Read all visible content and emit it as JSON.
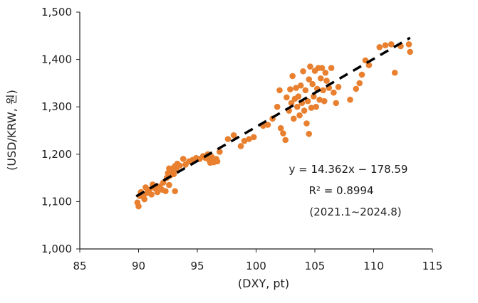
{
  "chart_data": {
    "type": "scatter",
    "xlabel": "(DXY, pt)",
    "ylabel": "(USD/KRW, 원)",
    "xlim": [
      85,
      115
    ],
    "ylim": [
      1000,
      1500
    ],
    "x_ticks": [
      85,
      90,
      95,
      100,
      105,
      110,
      115
    ],
    "y_ticks": [
      1000,
      1100,
      1200,
      1300,
      1400,
      1500
    ],
    "x_tick_labels": [
      "85",
      "90",
      "95",
      "100",
      "105",
      "110",
      "115"
    ],
    "y_tick_labels": [
      "1,000",
      "1,100",
      "1,200",
      "1,300",
      "1,400",
      "1,500"
    ],
    "grid": false,
    "legend": "none",
    "annotations": {
      "equation": "y = 14.362x − 178.59",
      "r_squared": "R² = 0.8994",
      "period": "(2021.1~2024.8)"
    },
    "trendline": {
      "style": "dashed",
      "color": "#000000",
      "slope": 14.362,
      "intercept": -178.59,
      "x_range": [
        89.8,
        113.1
      ]
    },
    "series": [
      {
        "color": "#E8802F",
        "points": [
          [
            89.9,
            1098
          ],
          [
            90.0,
            1090
          ],
          [
            90.1,
            1112
          ],
          [
            90.2,
            1120
          ],
          [
            90.4,
            1110
          ],
          [
            90.5,
            1105
          ],
          [
            90.6,
            1130
          ],
          [
            90.7,
            1118
          ],
          [
            90.9,
            1125
          ],
          [
            91.1,
            1115
          ],
          [
            91.2,
            1136
          ],
          [
            91.4,
            1128
          ],
          [
            91.6,
            1120
          ],
          [
            91.8,
            1132
          ],
          [
            92.0,
            1125
          ],
          [
            92.1,
            1140
          ],
          [
            92.3,
            1122
          ],
          [
            92.4,
            1150
          ],
          [
            92.5,
            1160
          ],
          [
            92.6,
            1135
          ],
          [
            92.7,
            1155
          ],
          [
            92.8,
            1165
          ],
          [
            92.9,
            1170
          ],
          [
            93.0,
            1158
          ],
          [
            93.1,
            1175
          ],
          [
            93.2,
            1168
          ],
          [
            93.3,
            1180
          ],
          [
            93.1,
            1122
          ],
          [
            92.6,
            1170
          ],
          [
            93.5,
            1176
          ],
          [
            93.8,
            1190
          ],
          [
            94.0,
            1178
          ],
          [
            94.3,
            1185
          ],
          [
            94.6,
            1188
          ],
          [
            94.9,
            1192
          ],
          [
            95.2,
            1190
          ],
          [
            95.5,
            1196
          ],
          [
            95.7,
            1192
          ],
          [
            95.9,
            1200
          ],
          [
            96.0,
            1188
          ],
          [
            96.1,
            1182
          ],
          [
            96.2,
            1195
          ],
          [
            96.3,
            1186
          ],
          [
            96.4,
            1183
          ],
          [
            96.6,
            1190
          ],
          [
            96.7,
            1185
          ],
          [
            96.9,
            1205
          ],
          [
            97.6,
            1232
          ],
          [
            98.1,
            1240
          ],
          [
            98.7,
            1217
          ],
          [
            99.0,
            1228
          ],
          [
            99.4,
            1232
          ],
          [
            99.8,
            1236
          ],
          [
            100.6,
            1260
          ],
          [
            101.0,
            1262
          ],
          [
            101.4,
            1275
          ],
          [
            101.8,
            1300
          ],
          [
            102.0,
            1335
          ],
          [
            102.1,
            1255
          ],
          [
            102.3,
            1244
          ],
          [
            102.5,
            1230
          ],
          [
            102.6,
            1320
          ],
          [
            102.8,
            1292
          ],
          [
            102.9,
            1337
          ],
          [
            103.0,
            1308
          ],
          [
            103.1,
            1365
          ],
          [
            103.2,
            1275
          ],
          [
            103.3,
            1317
          ],
          [
            103.4,
            1340
          ],
          [
            103.5,
            1300
          ],
          [
            103.6,
            1322
          ],
          [
            103.7,
            1282
          ],
          [
            103.8,
            1345
          ],
          [
            103.9,
            1308
          ],
          [
            104.0,
            1375
          ],
          [
            104.1,
            1292
          ],
          [
            104.2,
            1335
          ],
          [
            104.3,
            1265
          ],
          [
            104.4,
            1312
          ],
          [
            104.5,
            1358
          ],
          [
            104.5,
            1243
          ],
          [
            104.6,
            1385
          ],
          [
            104.7,
            1298
          ],
          [
            104.8,
            1348
          ],
          [
            104.9,
            1322
          ],
          [
            105.0,
            1376
          ],
          [
            105.1,
            1300
          ],
          [
            105.2,
            1338
          ],
          [
            105.3,
            1382
          ],
          [
            105.4,
            1315
          ],
          [
            105.5,
            1360
          ],
          [
            105.6,
            1382
          ],
          [
            105.7,
            1335
          ],
          [
            105.8,
            1312
          ],
          [
            105.9,
            1372
          ],
          [
            106.0,
            1355
          ],
          [
            106.2,
            1340
          ],
          [
            106.4,
            1382
          ],
          [
            106.6,
            1330
          ],
          [
            106.8,
            1308
          ],
          [
            107.0,
            1342
          ],
          [
            108.0,
            1315
          ],
          [
            108.5,
            1338
          ],
          [
            108.8,
            1350
          ],
          [
            109.0,
            1368
          ],
          [
            109.3,
            1398
          ],
          [
            109.6,
            1388
          ],
          [
            110.5,
            1426
          ],
          [
            111.0,
            1430
          ],
          [
            111.5,
            1432
          ],
          [
            111.8,
            1372
          ],
          [
            112.3,
            1428
          ],
          [
            113.0,
            1432
          ],
          [
            113.1,
            1416
          ]
        ]
      }
    ]
  }
}
